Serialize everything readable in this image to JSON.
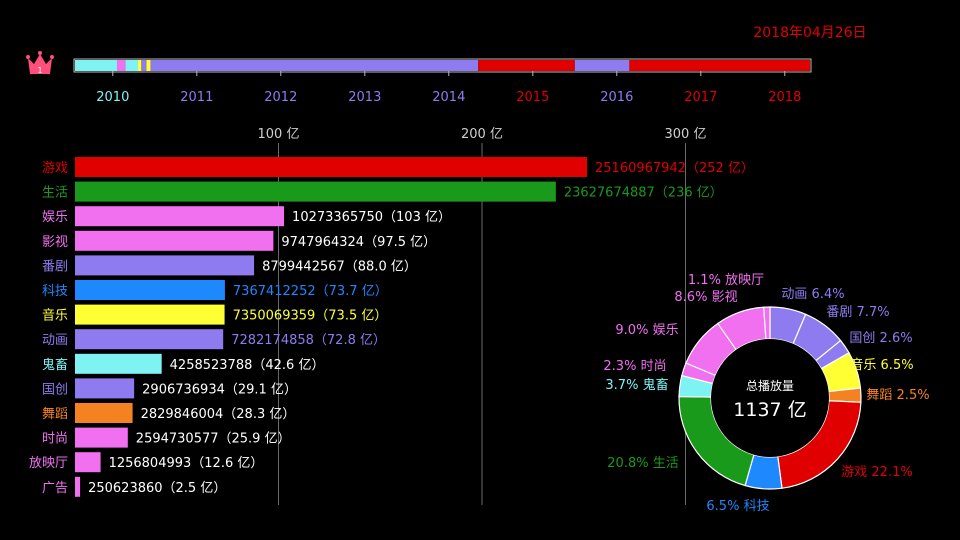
{
  "date_label": "2018年04月26日",
  "crown_rank": "1",
  "timeline": {
    "years": [
      "2010",
      "2011",
      "2012",
      "2013",
      "2014",
      "2015",
      "2016",
      "2017",
      "2018"
    ],
    "year_colors": [
      "#7ff3f3",
      "#8f7bf0",
      "#8f7bf0",
      "#8f7bf0",
      "#8f7bf0",
      "#e00000",
      "#8f7bf0",
      "#e00000",
      "#e00000"
    ],
    "start": 2009.55,
    "end": 2018.3,
    "segments": [
      {
        "from": 2009.55,
        "to": 2010.05,
        "color": "#7ff3f3"
      },
      {
        "from": 2010.05,
        "to": 2010.15,
        "color": "#f070f0"
      },
      {
        "from": 2010.15,
        "to": 2010.3,
        "color": "#7ff3f3"
      },
      {
        "from": 2010.3,
        "to": 2010.34,
        "color": "#ffff33"
      },
      {
        "from": 2010.34,
        "to": 2010.4,
        "color": "#8f7bf0"
      },
      {
        "from": 2010.4,
        "to": 2010.45,
        "color": "#ffff33"
      },
      {
        "from": 2010.45,
        "to": 2014.35,
        "color": "#8f7bf0"
      },
      {
        "from": 2014.35,
        "to": 2015.5,
        "color": "#e00000"
      },
      {
        "from": 2015.5,
        "to": 2016.15,
        "color": "#8f7bf0"
      },
      {
        "from": 2016.15,
        "to": 2018.3,
        "color": "#e00000"
      }
    ]
  },
  "chart_data": [
    {
      "type": "bar",
      "orientation": "horizontal",
      "xlim": [
        0,
        330
      ],
      "ticks": [
        {
          "value": 100,
          "label": "100 亿"
        },
        {
          "value": 200,
          "label": "200 亿"
        },
        {
          "value": 300,
          "label": "300 亿"
        }
      ],
      "categories": [
        "游戏",
        "生活",
        "娱乐",
        "影视",
        "番剧",
        "科技",
        "音乐",
        "动画",
        "鬼畜",
        "国创",
        "舞蹈",
        "时尚",
        "放映厅",
        "广告"
      ],
      "values": [
        251.61,
        236.28,
        102.73,
        97.48,
        88.0,
        73.67,
        73.5,
        72.82,
        42.59,
        29.07,
        28.3,
        25.95,
        12.57,
        2.51
      ],
      "value_labels": [
        "25160967942（252 亿）",
        "23627674887（236 亿）",
        "10273365750（103 亿）",
        "9747964324（97.5 亿）",
        "8799442567（88.0 亿）",
        "7367412252（73.7 亿）",
        "7350069359（73.5 亿）",
        "7282174858（72.8 亿）",
        "4258523788（42.6 亿）",
        "2906736934（29.1 亿）",
        "2829846004（28.3 亿）",
        "2594730577（25.9 亿）",
        "1256804993（12.6 亿）",
        "250623860（2.5 亿）"
      ],
      "colors": [
        "#e00000",
        "#1a9a1a",
        "#f070f0",
        "#f070f0",
        "#8f7bf0",
        "#1e88ff",
        "#ffff33",
        "#8f7bf0",
        "#7ff3f3",
        "#8f7bf0",
        "#f58220",
        "#f070f0",
        "#f070f0",
        "#f070f0"
      ],
      "label_colors": [
        "#e00000",
        "#1a9a1a",
        "#f070f0",
        "#f070f0",
        "#8f7bf0",
        "#1e88ff",
        "#ffff33",
        "#8f7bf0",
        "#7ff3f3",
        "#8f7bf0",
        "#f58220",
        "#f070f0",
        "#f070f0",
        "#f070f0"
      ],
      "value_label_colors": [
        "#e00000",
        "#1a9a1a",
        "#ffffff",
        "#ffffff",
        "#ffffff",
        "#1e88ff",
        "#ffff33",
        "#8f7bf0",
        "#ffffff",
        "#ffffff",
        "#ffffff",
        "#ffffff",
        "#ffffff",
        "#ffffff"
      ],
      "legend": "none"
    },
    {
      "type": "pie",
      "donut": true,
      "center_title": "总播放量",
      "center_value": "1137 亿",
      "slices": [
        {
          "name": "动画",
          "value": 6.4,
          "label": "动画 6.4%",
          "color": "#8f7bf0"
        },
        {
          "name": "番剧",
          "value": 7.7,
          "label": "番剧 7.7%",
          "color": "#8f7bf0"
        },
        {
          "name": "国创",
          "value": 2.6,
          "label": "国创 2.6%",
          "color": "#8f7bf0"
        },
        {
          "name": "音乐",
          "value": 6.5,
          "label": "音乐 6.5%",
          "color": "#ffff33"
        },
        {
          "name": "舞蹈",
          "value": 2.5,
          "label": "舞蹈 2.5%",
          "color": "#f58220"
        },
        {
          "name": "游戏",
          "value": 22.1,
          "label": "游戏 22.1%",
          "color": "#e00000"
        },
        {
          "name": "科技",
          "value": 6.5,
          "label": "6.5% 科技",
          "color": "#1e88ff"
        },
        {
          "name": "生活",
          "value": 20.8,
          "label": "20.8% 生活",
          "color": "#1a9a1a"
        },
        {
          "name": "鬼畜",
          "value": 3.7,
          "label": "3.7% 鬼畜",
          "color": "#7ff3f3"
        },
        {
          "name": "时尚",
          "value": 2.3,
          "label": "2.3% 时尚",
          "color": "#f070f0"
        },
        {
          "name": "娱乐",
          "value": 9.0,
          "label": "9.0% 娱乐",
          "color": "#f070f0"
        },
        {
          "name": "影视",
          "value": 8.6,
          "label": "8.6% 影视",
          "color": "#f070f0"
        },
        {
          "name": "放映厅",
          "value": 1.1,
          "label": "1.1% 放映厅",
          "color": "#f070f0"
        }
      ],
      "legend": "none"
    }
  ]
}
